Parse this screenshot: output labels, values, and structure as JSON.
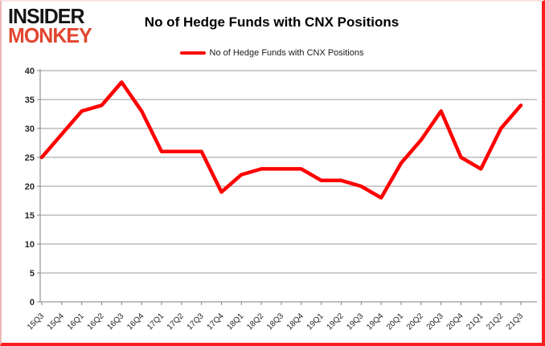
{
  "logo": {
    "line1": "INSIDER",
    "line2": "MONKEY"
  },
  "header": {
    "title": "No of Hedge Funds with CNX Positions",
    "legend_label": "No of Hedge Funds with CNX Positions"
  },
  "colors": {
    "series_line": "#ff0000",
    "gridline": "#9a9a9a",
    "axis": "#808080",
    "logo_red": "#e2452f",
    "frame_border": "#fb1f1f"
  },
  "chart_data": {
    "type": "line",
    "title": "No of Hedge Funds with CNX Positions",
    "categories": [
      "15Q3",
      "15Q4",
      "16Q1",
      "16Q2",
      "16Q3",
      "16Q4",
      "17Q1",
      "17Q2",
      "17Q3",
      "17Q4",
      "18Q1",
      "18Q2",
      "18Q3",
      "18Q4",
      "19Q1",
      "19Q2",
      "19Q3",
      "19Q4",
      "20Q1",
      "20Q2",
      "20Q3",
      "20Q4",
      "21Q1",
      "21Q2",
      "21Q3"
    ],
    "series": [
      {
        "name": "No of Hedge Funds with CNX Positions",
        "color": "#ff0000",
        "values": [
          25,
          29,
          33,
          34,
          38,
          33,
          26,
          26,
          26,
          19,
          22,
          23,
          23,
          23,
          21,
          21,
          20,
          18,
          24,
          28,
          33,
          25,
          23,
          30,
          34
        ]
      }
    ],
    "xlabel": "",
    "ylabel": "",
    "ylim": [
      0,
      40
    ],
    "ytick_step": 5,
    "grid": true,
    "legend_position": "top-center",
    "x_tick_label_rotation_deg": -45
  }
}
